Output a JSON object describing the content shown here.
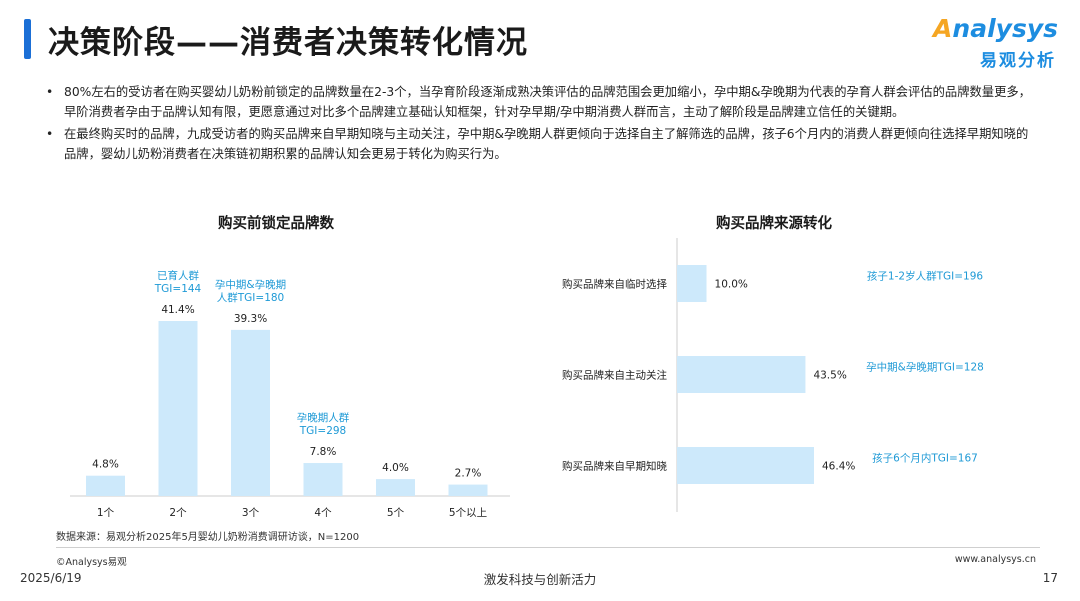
{
  "header": {
    "title": "决策阶段——消费者决策转化情况",
    "logo_en": "nalysys",
    "logo_en_initial": "A",
    "logo_cn": "易观分析"
  },
  "bullets": [
    "80%左右的受访者在购买婴幼儿奶粉前锁定的品牌数量在2-3个，当孕育阶段逐渐成熟决策评估的品牌范围会更加缩小，孕中期&孕晚期为代表的孕育人群会评估的品牌数量更多，早阶消费者孕由于品牌认知有限，更愿意通过对比多个品牌建立基础认知框架，针对孕早期/孕中期消费人群而言，主动了解阶段是品牌建立信任的关键期。",
    "在最终购买时的品牌，九成受访者的购买品牌来自早期知晓与主动关注，孕中期&孕晚期人群更倾向于选择自主了解筛选的品牌，孩子6个月内的消费人群更倾向往选择早期知晓的品牌，婴幼儿奶粉消费者在决策链初期积累的品牌认知会更易于转化为购买行为。"
  ],
  "bullet_marker": "•",
  "colors": {
    "bar": "#cde9fb",
    "annotation": "#1f9ad6",
    "accent": "#1b6fd6",
    "axis": "#cccccc"
  },
  "chart_data": [
    {
      "type": "bar",
      "title": "购买前锁定品牌数",
      "categories": [
        "1个",
        "2个",
        "3个",
        "4个",
        "5个",
        "5个以上"
      ],
      "values": [
        4.8,
        41.4,
        39.3,
        7.8,
        4.0,
        2.7
      ],
      "value_labels": [
        "4.8%",
        "41.4%",
        "39.3%",
        "7.8%",
        "4.0%",
        "2.7%"
      ],
      "annotations": [
        {
          "category_index": 1,
          "lines": [
            "已育人群",
            "TGI=144"
          ]
        },
        {
          "category_index": 2,
          "lines": [
            "孕中期&孕晚期",
            "人群TGI=180"
          ]
        },
        {
          "category_index": 3,
          "lines": [
            "孕晚期人群",
            "TGI=298"
          ]
        }
      ],
      "ylim": [
        0,
        45
      ]
    },
    {
      "type": "bar",
      "orientation": "horizontal",
      "title": "购买品牌来源转化",
      "categories": [
        "购买品牌来自临时选择",
        "购买品牌来自主动关注",
        "购买品牌来自早期知晓"
      ],
      "values": [
        10.0,
        43.5,
        46.4
      ],
      "value_labels": [
        "10.0%",
        "43.5%",
        "46.4%"
      ],
      "annotations": [
        "孩子1-2岁人群TGI=196",
        "孕中期&孕晚期TGI=128",
        "孩子6个月内TGI=167"
      ],
      "xlim": [
        0,
        50
      ]
    }
  ],
  "footer": {
    "source": "数据来源：易观分析2025年5月婴幼儿奶粉消费调研访谈，N=1200",
    "copyright": "©Analysys易观",
    "website": "www.analysys.cn",
    "date": "2025/6/19",
    "slogan": "激发科技与创新活力",
    "page": "17"
  }
}
